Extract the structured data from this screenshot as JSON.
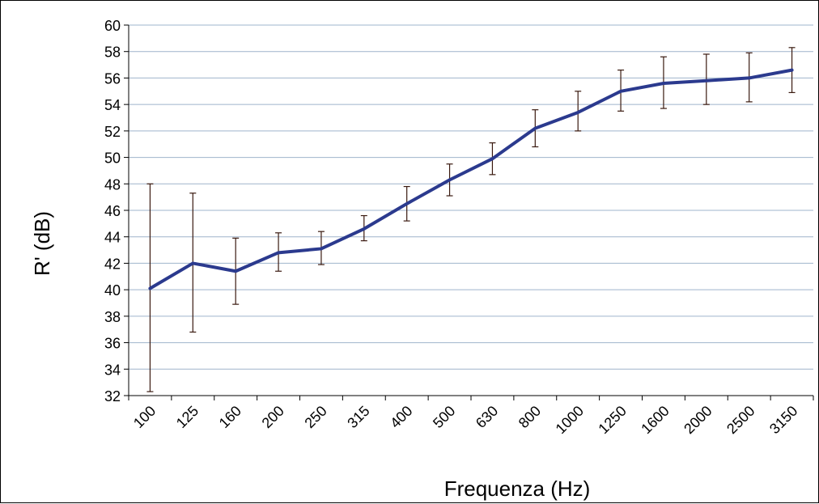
{
  "chart_data": {
    "type": "line",
    "xlabel": "Frequenza (Hz)",
    "ylabel": "R' (dB)",
    "categories": [
      "100",
      "125",
      "160",
      "200",
      "250",
      "315",
      "400",
      "500",
      "630",
      "800",
      "1000",
      "1250",
      "1600",
      "2000",
      "2500",
      "3150"
    ],
    "series": [
      {
        "values": [
          40.1,
          42.0,
          41.4,
          42.8,
          43.1,
          44.6,
          46.5,
          48.3,
          49.9,
          52.2,
          53.4,
          55.0,
          55.6,
          55.8,
          56.0,
          56.6
        ],
        "error_low": [
          32.3,
          36.8,
          38.9,
          41.4,
          41.9,
          43.7,
          45.2,
          47.1,
          48.7,
          50.8,
          52.0,
          53.5,
          53.7,
          54.0,
          54.2,
          54.9
        ],
        "error_high": [
          48.0,
          47.3,
          43.9,
          44.3,
          44.4,
          45.6,
          47.8,
          49.5,
          51.1,
          53.6,
          55.0,
          56.6,
          57.6,
          57.8,
          57.9,
          58.3
        ],
        "color": "#2b3a8e"
      }
    ],
    "ylim": [
      32,
      60
    ],
    "yticks": [
      32,
      34,
      36,
      38,
      40,
      42,
      44,
      46,
      48,
      50,
      52,
      54,
      56,
      58,
      60
    ],
    "grid": true,
    "grid_color": "#9fb4cc",
    "error_bar_color": "#3a1a10"
  }
}
